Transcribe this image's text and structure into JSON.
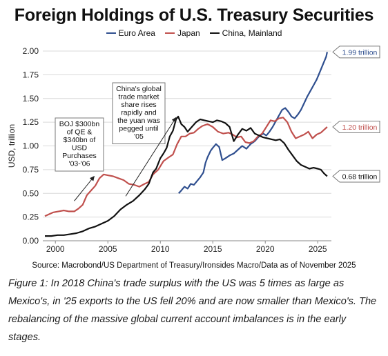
{
  "chart_data": {
    "type": "line",
    "title": "Foreign Holdings of U.S. Treasury Securities",
    "ylabel": "USD, trillion",
    "xlabel": "",
    "xlim": [
      1998.8,
      2026.3
    ],
    "ylim": [
      0,
      2.0
    ],
    "yticks": [
      "0.00",
      "0.25",
      "0.50",
      "0.75",
      "1.00",
      "1.25",
      "1.50",
      "1.75",
      "2.00"
    ],
    "xticks": [
      "2000",
      "2005",
      "2010",
      "2015",
      "2020",
      "2025"
    ],
    "grid": "horizontal",
    "legend_position": "top",
    "series": [
      {
        "name": "Euro Area",
        "color": "#2f4f8f",
        "points": [
          [
            2011.75,
            0.5
          ],
          [
            2012.0,
            0.53
          ],
          [
            2012.3,
            0.57
          ],
          [
            2012.6,
            0.55
          ],
          [
            2012.9,
            0.6
          ],
          [
            2013.2,
            0.59
          ],
          [
            2013.5,
            0.63
          ],
          [
            2013.8,
            0.67
          ],
          [
            2014.1,
            0.72
          ],
          [
            2014.3,
            0.82
          ],
          [
            2014.5,
            0.88
          ],
          [
            2014.8,
            0.95
          ],
          [
            2015.0,
            0.98
          ],
          [
            2015.3,
            1.02
          ],
          [
            2015.6,
            0.99
          ],
          [
            2015.9,
            0.85
          ],
          [
            2016.2,
            0.87
          ],
          [
            2016.6,
            0.9
          ],
          [
            2017.0,
            0.92
          ],
          [
            2017.4,
            0.96
          ],
          [
            2017.8,
            1.0
          ],
          [
            2018.2,
            0.97
          ],
          [
            2018.6,
            1.02
          ],
          [
            2019.0,
            1.05
          ],
          [
            2019.4,
            1.1
          ],
          [
            2019.8,
            1.13
          ],
          [
            2020.1,
            1.11
          ],
          [
            2020.4,
            1.15
          ],
          [
            2020.7,
            1.2
          ],
          [
            2021.0,
            1.26
          ],
          [
            2021.3,
            1.32
          ],
          [
            2021.6,
            1.38
          ],
          [
            2021.9,
            1.4
          ],
          [
            2022.2,
            1.36
          ],
          [
            2022.5,
            1.31
          ],
          [
            2022.8,
            1.29
          ],
          [
            2023.1,
            1.33
          ],
          [
            2023.4,
            1.38
          ],
          [
            2023.7,
            1.45
          ],
          [
            2024.0,
            1.52
          ],
          [
            2024.3,
            1.58
          ],
          [
            2024.6,
            1.64
          ],
          [
            2024.9,
            1.7
          ],
          [
            2025.2,
            1.78
          ],
          [
            2025.5,
            1.86
          ],
          [
            2025.8,
            1.94
          ],
          [
            2025.9,
            1.99
          ]
        ]
      },
      {
        "name": "Japan",
        "color": "#c0504d",
        "points": [
          [
            1999.0,
            0.26
          ],
          [
            1999.4,
            0.28
          ],
          [
            1999.8,
            0.3
          ],
          [
            2000.3,
            0.31
          ],
          [
            2000.8,
            0.32
          ],
          [
            2001.3,
            0.31
          ],
          [
            2001.8,
            0.31
          ],
          [
            2002.2,
            0.34
          ],
          [
            2002.6,
            0.38
          ],
          [
            2003.0,
            0.48
          ],
          [
            2003.4,
            0.53
          ],
          [
            2003.8,
            0.58
          ],
          [
            2004.2,
            0.66
          ],
          [
            2004.6,
            0.7
          ],
          [
            2005.0,
            0.69
          ],
          [
            2005.5,
            0.68
          ],
          [
            2006.0,
            0.66
          ],
          [
            2006.5,
            0.64
          ],
          [
            2007.0,
            0.6
          ],
          [
            2007.5,
            0.59
          ],
          [
            2008.0,
            0.57
          ],
          [
            2008.5,
            0.6
          ],
          [
            2008.9,
            0.62
          ],
          [
            2009.3,
            0.7
          ],
          [
            2009.8,
            0.75
          ],
          [
            2010.3,
            0.84
          ],
          [
            2010.8,
            0.88
          ],
          [
            2011.2,
            0.91
          ],
          [
            2011.6,
            1.02
          ],
          [
            2012.0,
            1.1
          ],
          [
            2012.4,
            1.1
          ],
          [
            2012.8,
            1.13
          ],
          [
            2013.2,
            1.14
          ],
          [
            2013.6,
            1.18
          ],
          [
            2014.0,
            1.21
          ],
          [
            2014.5,
            1.23
          ],
          [
            2015.0,
            1.2
          ],
          [
            2015.5,
            1.15
          ],
          [
            2016.0,
            1.13
          ],
          [
            2016.5,
            1.14
          ],
          [
            2016.9,
            1.12
          ],
          [
            2017.3,
            1.09
          ],
          [
            2017.7,
            1.1
          ],
          [
            2018.1,
            1.04
          ],
          [
            2018.5,
            1.03
          ],
          [
            2018.9,
            1.05
          ],
          [
            2019.3,
            1.1
          ],
          [
            2019.7,
            1.13
          ],
          [
            2020.1,
            1.2
          ],
          [
            2020.5,
            1.27
          ],
          [
            2020.9,
            1.26
          ],
          [
            2021.3,
            1.29
          ],
          [
            2021.7,
            1.3
          ],
          [
            2022.1,
            1.25
          ],
          [
            2022.5,
            1.15
          ],
          [
            2022.9,
            1.08
          ],
          [
            2023.3,
            1.1
          ],
          [
            2023.7,
            1.12
          ],
          [
            2024.1,
            1.15
          ],
          [
            2024.5,
            1.08
          ],
          [
            2024.9,
            1.12
          ],
          [
            2025.3,
            1.14
          ],
          [
            2025.6,
            1.17
          ],
          [
            2025.9,
            1.2
          ]
        ]
      },
      {
        "name": "China, Mainland",
        "color": "#111111",
        "points": [
          [
            1999.0,
            0.05
          ],
          [
            1999.6,
            0.05
          ],
          [
            2000.2,
            0.06
          ],
          [
            2000.8,
            0.06
          ],
          [
            2001.4,
            0.07
          ],
          [
            2002.0,
            0.08
          ],
          [
            2002.6,
            0.1
          ],
          [
            2003.2,
            0.13
          ],
          [
            2003.8,
            0.15
          ],
          [
            2004.4,
            0.18
          ],
          [
            2005.0,
            0.21
          ],
          [
            2005.6,
            0.26
          ],
          [
            2006.2,
            0.33
          ],
          [
            2006.8,
            0.38
          ],
          [
            2007.4,
            0.42
          ],
          [
            2008.0,
            0.48
          ],
          [
            2008.5,
            0.54
          ],
          [
            2008.9,
            0.6
          ],
          [
            2009.3,
            0.72
          ],
          [
            2009.6,
            0.76
          ],
          [
            2010.0,
            0.87
          ],
          [
            2010.3,
            0.92
          ],
          [
            2010.6,
            0.98
          ],
          [
            2010.9,
            1.1
          ],
          [
            2011.2,
            1.16
          ],
          [
            2011.5,
            1.28
          ],
          [
            2011.7,
            1.31
          ],
          [
            2012.0,
            1.23
          ],
          [
            2012.3,
            1.2
          ],
          [
            2012.6,
            1.15
          ],
          [
            2013.0,
            1.2
          ],
          [
            2013.4,
            1.25
          ],
          [
            2013.8,
            1.28
          ],
          [
            2014.2,
            1.27
          ],
          [
            2014.6,
            1.26
          ],
          [
            2015.0,
            1.25
          ],
          [
            2015.4,
            1.27
          ],
          [
            2015.8,
            1.26
          ],
          [
            2016.2,
            1.24
          ],
          [
            2016.6,
            1.2
          ],
          [
            2017.0,
            1.05
          ],
          [
            2017.4,
            1.12
          ],
          [
            2017.8,
            1.18
          ],
          [
            2018.2,
            1.16
          ],
          [
            2018.6,
            1.19
          ],
          [
            2019.0,
            1.13
          ],
          [
            2019.4,
            1.11
          ],
          [
            2019.8,
            1.09
          ],
          [
            2020.2,
            1.08
          ],
          [
            2020.6,
            1.07
          ],
          [
            2021.0,
            1.06
          ],
          [
            2021.4,
            1.07
          ],
          [
            2021.8,
            1.03
          ],
          [
            2022.2,
            0.96
          ],
          [
            2022.6,
            0.9
          ],
          [
            2023.0,
            0.84
          ],
          [
            2023.4,
            0.8
          ],
          [
            2023.8,
            0.78
          ],
          [
            2024.2,
            0.76
          ],
          [
            2024.6,
            0.77
          ],
          [
            2025.0,
            0.76
          ],
          [
            2025.3,
            0.75
          ],
          [
            2025.6,
            0.71
          ],
          [
            2025.9,
            0.68
          ]
        ]
      }
    ],
    "end_labels": [
      {
        "text": "1.99 trillion",
        "value": 1.99,
        "color": "#2f4f8f"
      },
      {
        "text": "1.20 trillion",
        "value": 1.2,
        "color": "#c0504d"
      },
      {
        "text": "0.68 trillion",
        "value": 0.68,
        "color": "#111111"
      }
    ],
    "annotations": [
      {
        "lines": [
          "BOJ $300bn",
          "of QE &",
          "$340bn of",
          "USD",
          "Purchases",
          "'03-'06"
        ],
        "arrow_to": [
          2003.7,
          0.68
        ],
        "arrow_from": [
          2001.8,
          0.42
        ]
      },
      {
        "lines": [
          "China's global",
          "trade market",
          "share rises",
          "rapidly and",
          "the yuan was",
          "pegged until",
          "'05"
        ],
        "arrow_to": [
          2011.5,
          1.3
        ],
        "arrow_from": [
          2006.7,
          0.47
        ]
      }
    ]
  },
  "source": "Source: Macrobond/US Department of Treasury/Ironsides Macro/Data as of November 2025",
  "caption": "Figure 1: In 2018 China's trade surplus with the US was 5 times as large as Mexico's, in '25 exports to the US fell 20% and are now smaller than Mexico's. The rebalancing of the massive global current account imbalances is in the early stages."
}
